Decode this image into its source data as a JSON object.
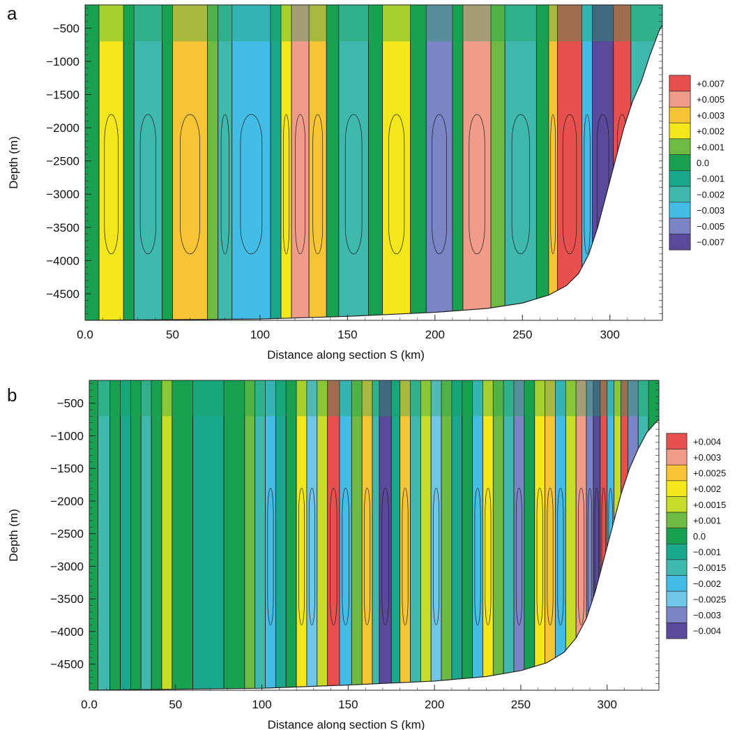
{
  "chart_data": [
    {
      "type": "heatmap",
      "panel_label": "a",
      "xlabel": "Distance along section S (km)",
      "ylabel": "Depth (m)",
      "xlim": [
        0,
        330
      ],
      "ylim": [
        -4900,
        -150
      ],
      "x_ticks": [
        0,
        50,
        100,
        150,
        200,
        250,
        300
      ],
      "x_tick_labels": [
        "0.0",
        "50",
        "100",
        "150",
        "200",
        "250",
        "300"
      ],
      "y_ticks": [
        -500,
        -1000,
        -1500,
        -2000,
        -2500,
        -3000,
        -3500,
        -4000,
        -4500
      ],
      "y_tick_labels": [
        "−500",
        "−1000",
        "−1500",
        "−2000",
        "−2500",
        "−3000",
        "−3500",
        "−4000",
        "−4500"
      ],
      "legend": {
        "position": "right",
        "levels": [
          0.007,
          0.005,
          0.003,
          0.002,
          0.001,
          0.0,
          -0.001,
          -0.002,
          -0.003,
          -0.005,
          -0.007
        ],
        "labels": [
          "+0.007",
          "+0.005",
          "+0.003",
          "+0.002",
          "+0.001",
          "0.0",
          "−0.001",
          "−0.002",
          "−0.003",
          "−0.005",
          "−0.007"
        ],
        "colors": [
          "#e8504f",
          "#f19c8a",
          "#f6c434",
          "#f4e81c",
          "#6fba43",
          "#17a150",
          "#19a88c",
          "#3fb9ad",
          "#43bde6",
          "#7b84c4",
          "#5b4a9c"
        ]
      },
      "cells": [
        {
          "x": [
            0,
            8
          ],
          "value": 0.0
        },
        {
          "x": [
            8,
            22
          ],
          "value": 0.002
        },
        {
          "x": [
            22,
            28
          ],
          "value": 0.0
        },
        {
          "x": [
            28,
            44
          ],
          "value": -0.002
        },
        {
          "x": [
            44,
            50
          ],
          "value": 0.0
        },
        {
          "x": [
            50,
            70
          ],
          "value": 0.003
        },
        {
          "x": [
            70,
            76
          ],
          "value": 0.001
        },
        {
          "x": [
            76,
            84
          ],
          "value": -0.002
        },
        {
          "x": [
            84,
            106
          ],
          "value": -0.003
        },
        {
          "x": [
            106,
            112
          ],
          "value": -0.001
        },
        {
          "x": [
            112,
            118
          ],
          "value": 0.002
        },
        {
          "x": [
            118,
            128
          ],
          "value": 0.005
        },
        {
          "x": [
            128,
            138
          ],
          "value": 0.003
        },
        {
          "x": [
            138,
            145
          ],
          "value": 0.0
        },
        {
          "x": [
            145,
            162
          ],
          "value": -0.002
        },
        {
          "x": [
            162,
            170
          ],
          "value": 0.0
        },
        {
          "x": [
            170,
            186
          ],
          "value": 0.002
        },
        {
          "x": [
            186,
            195
          ],
          "value": 0.0
        },
        {
          "x": [
            195,
            210
          ],
          "value": -0.005
        },
        {
          "x": [
            210,
            216
          ],
          "value": 0.0
        },
        {
          "x": [
            216,
            232
          ],
          "value": 0.005
        },
        {
          "x": [
            232,
            240
          ],
          "value": 0.001
        },
        {
          "x": [
            240,
            258
          ],
          "value": -0.002
        },
        {
          "x": [
            258,
            265
          ],
          "value": 0.0
        },
        {
          "x": [
            265,
            270
          ],
          "value": 0.003
        },
        {
          "x": [
            270,
            284
          ],
          "value": 0.007
        },
        {
          "x": [
            284,
            290
          ],
          "value": -0.003
        },
        {
          "x": [
            290,
            302
          ],
          "value": -0.007
        },
        {
          "x": [
            302,
            312
          ],
          "value": 0.007
        },
        {
          "x": [
            312,
            330
          ],
          "value": -0.002
        }
      ],
      "seafloor": {
        "x": [
          0,
          100,
          150,
          200,
          230,
          250,
          265,
          275,
          282,
          288,
          293,
          298,
          303,
          308,
          313,
          318,
          323,
          328,
          330
        ],
        "y": [
          -4900,
          -4880,
          -4840,
          -4780,
          -4720,
          -4640,
          -4520,
          -4380,
          -4200,
          -3900,
          -3500,
          -3000,
          -2500,
          -2000,
          -1600,
          -1300,
          -900,
          -550,
          -450
        ]
      }
    },
    {
      "type": "heatmap",
      "panel_label": "b",
      "xlabel": "Distance along section S (km)",
      "ylabel": "Depth (m)",
      "xlim": [
        0,
        330
      ],
      "ylim": [
        -4900,
        -150
      ],
      "x_ticks": [
        0,
        50,
        100,
        150,
        200,
        250,
        300
      ],
      "x_tick_labels": [
        "0.0",
        "50",
        "100",
        "150",
        "200",
        "250",
        "300"
      ],
      "y_ticks": [
        -500,
        -1000,
        -1500,
        -2000,
        -2500,
        -3000,
        -3500,
        -4000,
        -4500
      ],
      "y_tick_labels": [
        "−500",
        "−1000",
        "−1500",
        "−2000",
        "−2500",
        "−3000",
        "−3500",
        "−4000",
        "−4500"
      ],
      "legend": {
        "position": "right",
        "levels": [
          0.004,
          0.003,
          0.0025,
          0.002,
          0.0015,
          0.001,
          0.0,
          -0.001,
          -0.0015,
          -0.002,
          -0.0025,
          -0.003,
          -0.004
        ],
        "labels": [
          "+0.004",
          "+0.003",
          "+0.0025",
          "+0.002",
          "+0.0015",
          "+0.001",
          "0.0",
          "−0.001",
          "−0.0015",
          "−0.002",
          "−0.0025",
          "−0.003",
          "−0.004"
        ],
        "colors": [
          "#e8504f",
          "#f19c8a",
          "#f6c434",
          "#f4e81c",
          "#c8dc2a",
          "#6fba43",
          "#17a150",
          "#19a88c",
          "#3fb9ad",
          "#43bde6",
          "#6fc6e8",
          "#7b84c4",
          "#5b4a9c"
        ]
      },
      "cells": [
        {
          "x": [
            0,
            5
          ],
          "value": 0.0
        },
        {
          "x": [
            5,
            12
          ],
          "value": -0.0015
        },
        {
          "x": [
            12,
            18
          ],
          "value": 0.0
        },
        {
          "x": [
            18,
            24
          ],
          "value": -0.001
        },
        {
          "x": [
            24,
            30
          ],
          "value": 0.0
        },
        {
          "x": [
            30,
            36
          ],
          "value": -0.0015
        },
        {
          "x": [
            36,
            42
          ],
          "value": 0.0
        },
        {
          "x": [
            42,
            48
          ],
          "value": 0.0015
        },
        {
          "x": [
            48,
            60
          ],
          "value": 0.0
        },
        {
          "x": [
            60,
            78
          ],
          "value": -0.001
        },
        {
          "x": [
            78,
            90
          ],
          "value": 0.0
        },
        {
          "x": [
            90,
            96
          ],
          "value": 0.001
        },
        {
          "x": [
            96,
            102
          ],
          "value": -0.0015
        },
        {
          "x": [
            102,
            108
          ],
          "value": -0.002
        },
        {
          "x": [
            108,
            114
          ],
          "value": -0.001
        },
        {
          "x": [
            114,
            120
          ],
          "value": 0.0
        },
        {
          "x": [
            120,
            126
          ],
          "value": 0.002
        },
        {
          "x": [
            126,
            132
          ],
          "value": -0.0025
        },
        {
          "x": [
            132,
            138
          ],
          "value": 0.0015
        },
        {
          "x": [
            138,
            145
          ],
          "value": 0.004
        },
        {
          "x": [
            145,
            152
          ],
          "value": -0.002
        },
        {
          "x": [
            152,
            158
          ],
          "value": 0.001
        },
        {
          "x": [
            158,
            164
          ],
          "value": 0.0025
        },
        {
          "x": [
            164,
            168
          ],
          "value": -0.0015
        },
        {
          "x": [
            168,
            175
          ],
          "value": -0.004
        },
        {
          "x": [
            175,
            180
          ],
          "value": -0.001
        },
        {
          "x": [
            180,
            186
          ],
          "value": 0.0025
        },
        {
          "x": [
            186,
            192
          ],
          "value": -0.0015
        },
        {
          "x": [
            192,
            198
          ],
          "value": 0.0015
        },
        {
          "x": [
            198,
            204
          ],
          "value": -0.0025
        },
        {
          "x": [
            204,
            210
          ],
          "value": 0.001
        },
        {
          "x": [
            210,
            216
          ],
          "value": -0.001
        },
        {
          "x": [
            216,
            222
          ],
          "value": 0.0
        },
        {
          "x": [
            222,
            228
          ],
          "value": -0.002
        },
        {
          "x": [
            228,
            234
          ],
          "value": 0.002
        },
        {
          "x": [
            234,
            240
          ],
          "value": 0.001
        },
        {
          "x": [
            240,
            246
          ],
          "value": -0.0015
        },
        {
          "x": [
            246,
            252
          ],
          "value": -0.003
        },
        {
          "x": [
            252,
            258
          ],
          "value": 0.0
        },
        {
          "x": [
            258,
            264
          ],
          "value": 0.002
        },
        {
          "x": [
            264,
            270
          ],
          "value": 0.0025
        },
        {
          "x": [
            270,
            276
          ],
          "value": -0.002
        },
        {
          "x": [
            276,
            282
          ],
          "value": 0.0015
        },
        {
          "x": [
            282,
            288
          ],
          "value": 0.003
        },
        {
          "x": [
            288,
            292
          ],
          "value": -0.003
        },
        {
          "x": [
            292,
            296
          ],
          "value": -0.004
        },
        {
          "x": [
            296,
            300
          ],
          "value": 0.004
        },
        {
          "x": [
            300,
            304
          ],
          "value": -0.002
        },
        {
          "x": [
            304,
            308
          ],
          "value": 0.0015
        },
        {
          "x": [
            308,
            312
          ],
          "value": 0.004
        },
        {
          "x": [
            312,
            318
          ],
          "value": -0.003
        },
        {
          "x": [
            318,
            324
          ],
          "value": -0.0015
        },
        {
          "x": [
            324,
            330
          ],
          "value": 0.0
        }
      ],
      "seafloor": {
        "x": [
          0,
          100,
          150,
          200,
          230,
          250,
          265,
          275,
          282,
          288,
          293,
          298,
          303,
          308,
          313,
          318,
          323,
          328,
          330
        ],
        "y": [
          -4900,
          -4870,
          -4820,
          -4760,
          -4690,
          -4600,
          -4480,
          -4320,
          -4100,
          -3800,
          -3400,
          -2900,
          -2400,
          -1900,
          -1500,
          -1200,
          -950,
          -800,
          -750
        ]
      }
    }
  ]
}
